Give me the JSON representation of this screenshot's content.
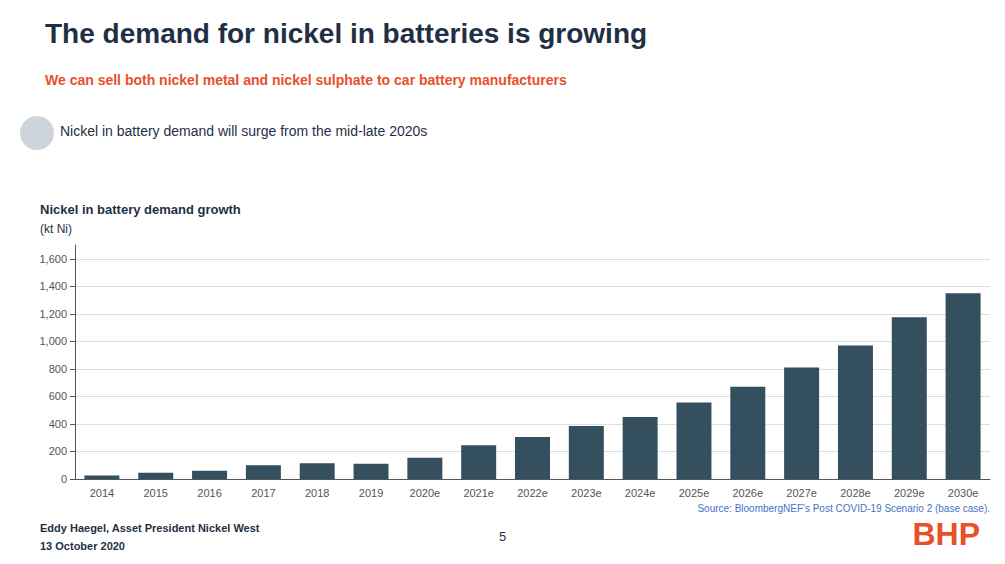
{
  "chart_data": {
    "type": "bar",
    "title": "The demand for nickel in batteries is growing",
    "subtitle": "We can sell both nickel metal and nickel sulphate to car battery manufacturers",
    "annotations": [
      "Nickel in battery demand will surge from the mid-late 2020s",
      "Nickel in battery demand growth",
      "(kt Ni)",
      "Source: BloombergNEF's Post COVID-19 Scenario 2 (base case).",
      "Eddy Haegel, Asset President Nickel West",
      "13 October 2020",
      "5",
      "BHP"
    ],
    "categories": [
      "2014",
      "2015",
      "2016",
      "2017",
      "2018",
      "2019",
      "2020e",
      "2021e",
      "2022e",
      "2023e",
      "2024e",
      "2025e",
      "2026e",
      "2027e",
      "2028e",
      "2029e",
      "2030e"
    ],
    "values": [
      25,
      45,
      60,
      100,
      115,
      110,
      155,
      245,
      305,
      385,
      450,
      555,
      670,
      810,
      970,
      1175,
      1350
    ],
    "color": "#344f5e",
    "ylim": [
      0,
      1700
    ],
    "yticks": [
      0,
      200,
      400,
      600,
      800,
      {
        "value": 1000,
        "label": "1,000"
      },
      {
        "value": 1200,
        "label": "1,200"
      },
      {
        "value": 1400,
        "label": "1,400"
      },
      {
        "value": 1600,
        "label": "1,600"
      }
    ],
    "grid": true
  }
}
